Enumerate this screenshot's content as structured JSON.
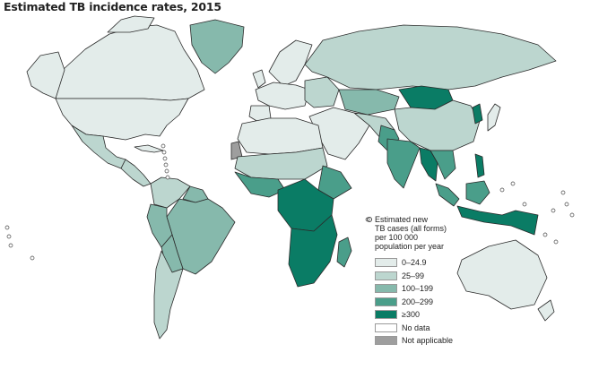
{
  "title": "Estimated TB incidence rates, 2015",
  "legend": {
    "heading_lines": [
      "Estimated new",
      "TB cases (all forms)",
      "per 100 000",
      "population per year"
    ],
    "items": [
      {
        "label": "0–24.9",
        "color": "#e3ecea"
      },
      {
        "label": "25–99",
        "color": "#bcd6cf"
      },
      {
        "label": "100–199",
        "color": "#86b9ac"
      },
      {
        "label": "200–299",
        "color": "#4a9e8a"
      },
      {
        "label": "≥300",
        "color": "#0a7c65"
      },
      {
        "label": "No data",
        "color": "#ffffff"
      },
      {
        "label": "Not applicable",
        "color": "#9e9e9e"
      }
    ]
  },
  "map_colors": {
    "c0": "#e3ecea",
    "c1": "#bcd6cf",
    "c2": "#86b9ac",
    "c3": "#4a9e8a",
    "c4": "#0a7c65",
    "na": "#9e9e9e"
  }
}
